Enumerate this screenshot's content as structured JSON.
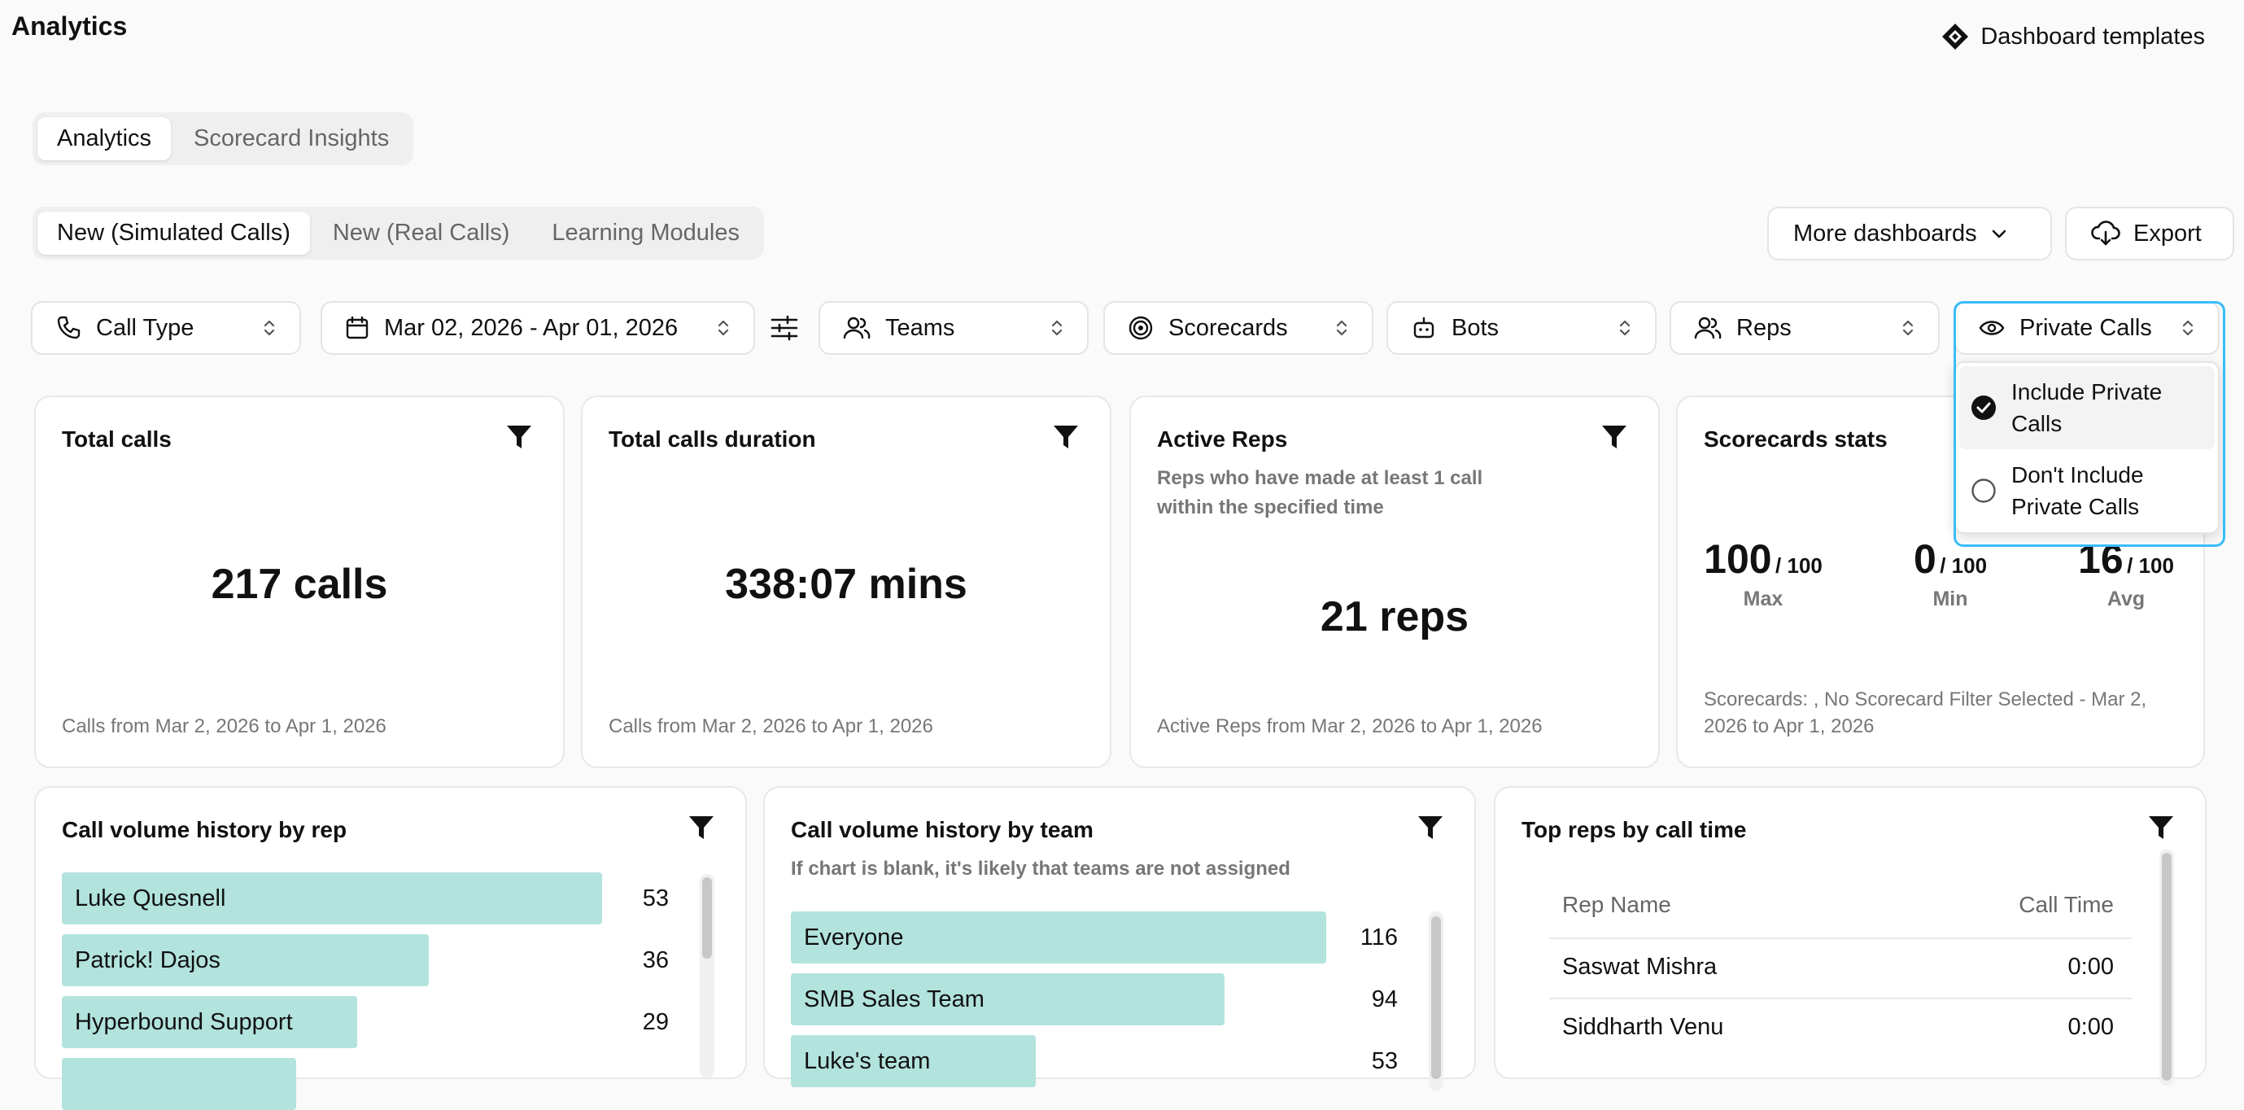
{
  "header": {
    "title": "Analytics",
    "templates_label": "Dashboard templates",
    "templates_icon": "diamond-logo-icon"
  },
  "tabs_primary": [
    "Analytics",
    "Scorecard Insights"
  ],
  "tabs_secondary": [
    "New (Simulated Calls)",
    "New (Real Calls)",
    "Learning Modules"
  ],
  "toolbar": {
    "more_dashboards": "More dashboards",
    "export": "Export"
  },
  "filters": {
    "call_type": "Call Type",
    "date_range": "Mar 02, 2026 - Apr 01, 2026",
    "teams": "Teams",
    "scorecards": "Scorecards",
    "bots": "Bots",
    "reps": "Reps",
    "private_calls": "Private Calls"
  },
  "private_dropdown": {
    "options": [
      "Include Private Calls",
      "Don't Include Private Calls"
    ],
    "selected_index": 0
  },
  "cards": {
    "total_calls": {
      "title": "Total calls",
      "value": "217 calls",
      "footer": "Calls from Mar 2, 2026 to Apr 1, 2026"
    },
    "total_duration": {
      "title": "Total calls duration",
      "value": "338:07 mins",
      "footer": "Calls from Mar 2, 2026 to Apr 1, 2026"
    },
    "active_reps": {
      "title": "Active Reps",
      "subtitle": "Reps who have made at least 1 call within the specified time",
      "value": "21 reps",
      "footer": "Active Reps from Mar 2, 2026 to Apr 1, 2026"
    },
    "scorecards": {
      "title": "Scorecards stats",
      "max": "100",
      "max_of": "/ 100",
      "max_label": "Max",
      "min": "0",
      "min_of": "/ 100",
      "min_label": "Min",
      "avg": "16",
      "avg_of": "/ 100",
      "avg_label": "Avg",
      "footer": "Scorecards: , No Scorecard Filter Selected - Mar 2, 2026 to Apr 1, 2026"
    }
  },
  "rep_history": {
    "title": "Call volume history by rep",
    "rows": [
      {
        "name": "Luke Quesnell",
        "value": 53
      },
      {
        "name": "Patrick! Dajos",
        "value": 36
      },
      {
        "name": "Hyperbound Support",
        "value": 29
      },
      {
        "name": "",
        "value": null
      }
    ],
    "max": 53
  },
  "team_history": {
    "title": "Call volume history by team",
    "subtitle": "If chart is blank, it's likely that teams are not assigned",
    "rows": [
      {
        "name": "Everyone",
        "value": 116
      },
      {
        "name": "SMB Sales Team",
        "value": 94
      },
      {
        "name": "Luke's team",
        "value": 53
      }
    ],
    "max": 116
  },
  "top_reps": {
    "title": "Top reps by call time",
    "col_name": "Rep Name",
    "col_time": "Call Time",
    "rows": [
      {
        "name": "Saswat Mishra",
        "time": "0:00"
      },
      {
        "name": "Siddharth Venu",
        "time": "0:00"
      }
    ]
  }
}
